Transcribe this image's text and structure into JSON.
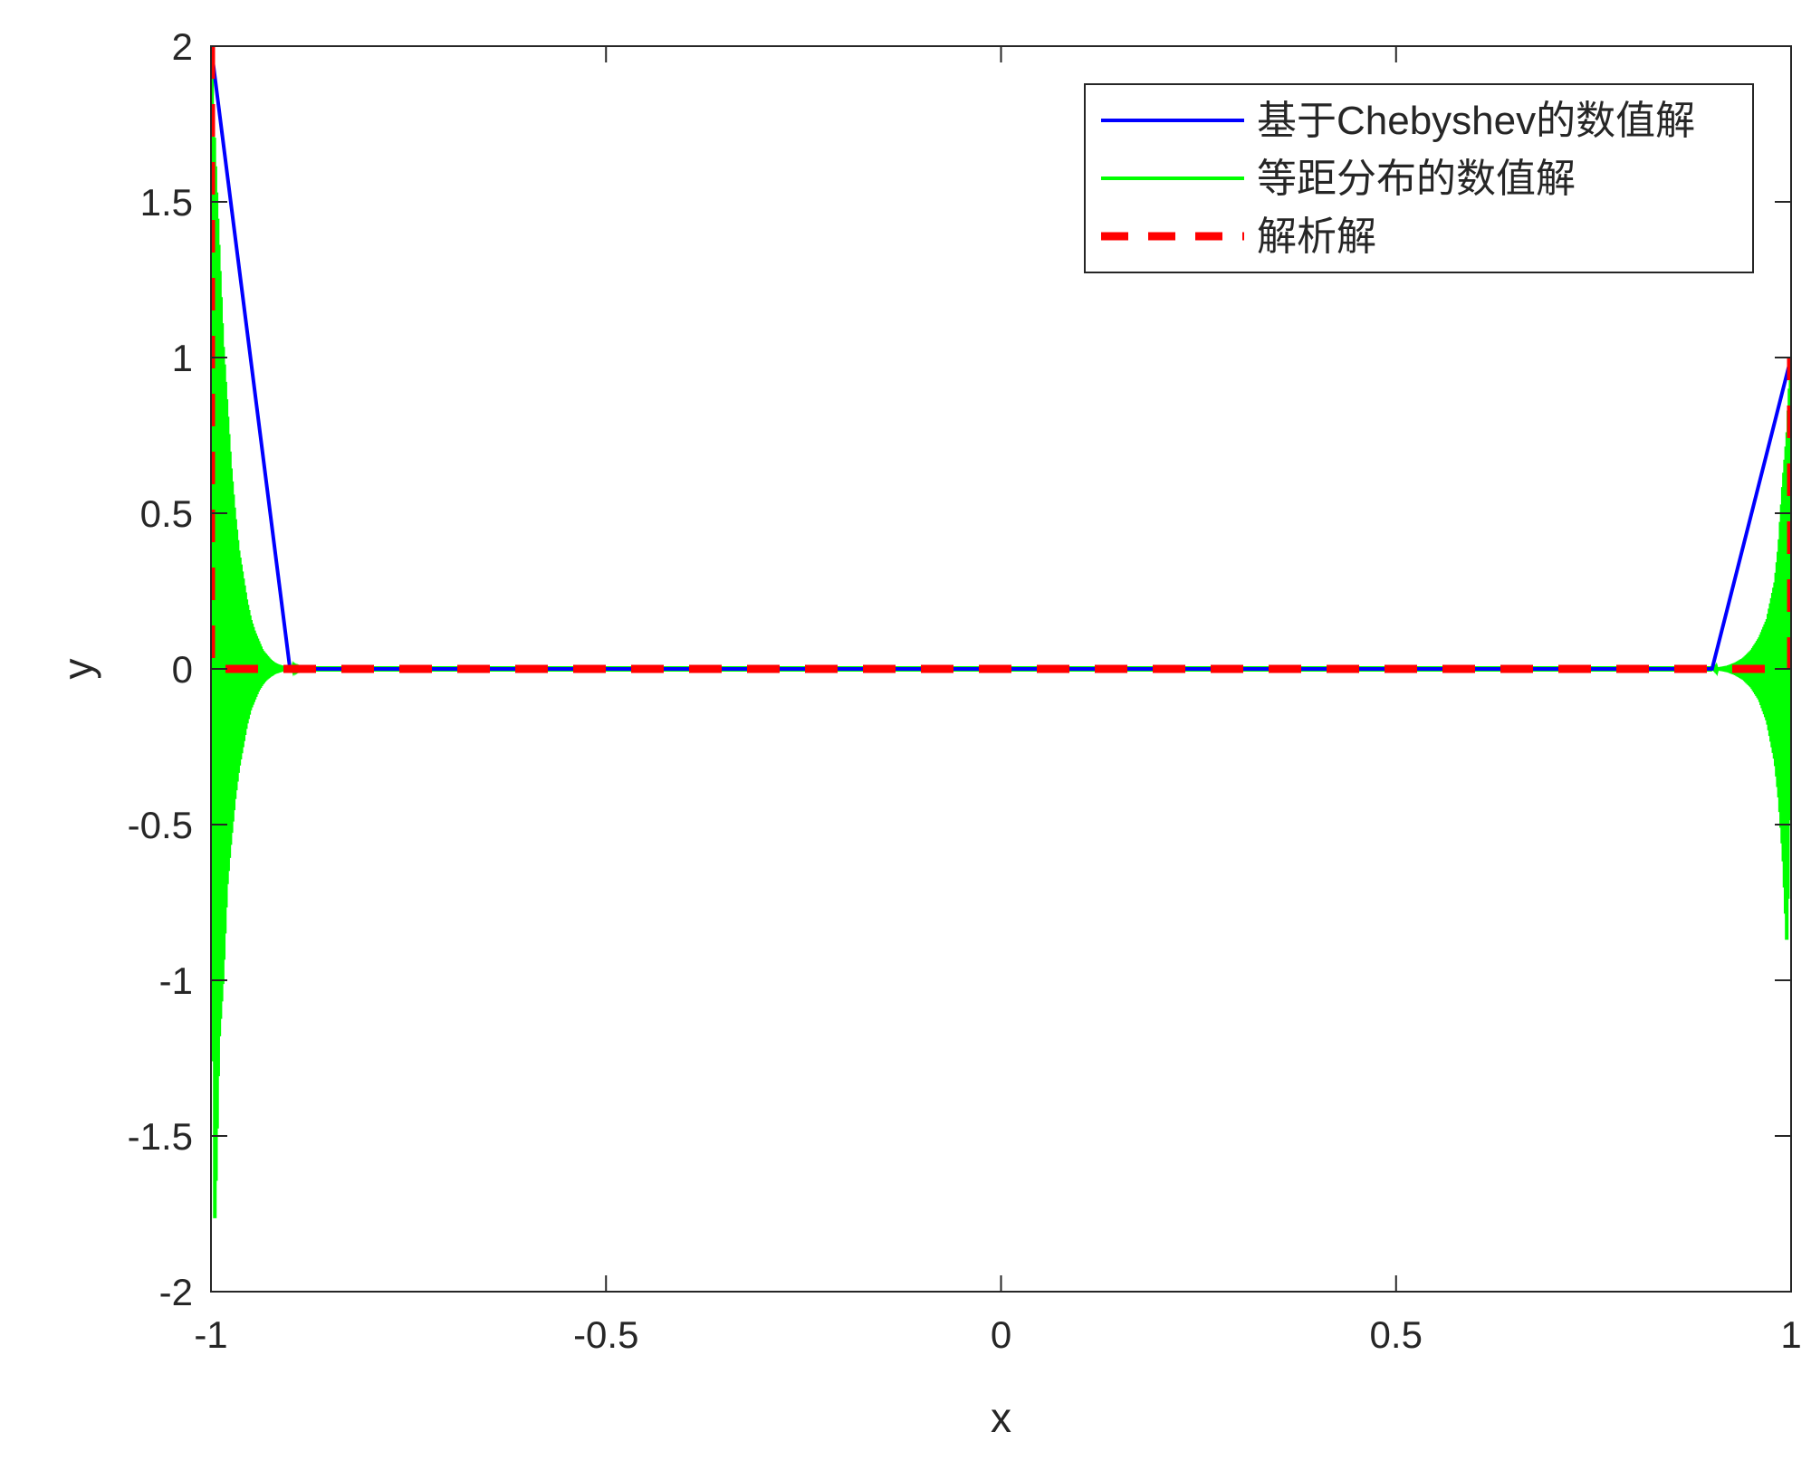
{
  "chart_data": {
    "type": "line",
    "title": "",
    "xlabel": "x",
    "ylabel": "y",
    "xlim": [
      -1,
      1
    ],
    "ylim": [
      -2,
      2
    ],
    "x_ticks": [
      "-1",
      "-0.5",
      "0",
      "0.5",
      "1"
    ],
    "x_tick_values": [
      -1,
      -0.5,
      0,
      0.5,
      1
    ],
    "y_ticks": [
      "-2",
      "-1.5",
      "-1",
      "-0.5",
      "0",
      "0.5",
      "1",
      "1.5",
      "2"
    ],
    "y_tick_values": [
      -2,
      -1.5,
      -1,
      -0.5,
      0,
      0.5,
      1,
      1.5,
      2
    ],
    "grid": false,
    "legend_position": "top-right",
    "series": [
      {
        "name": "基于Chebyshev的数值解",
        "color": "#0000ff",
        "style": "solid",
        "x": [
          -1,
          -0.9,
          0,
          0.9,
          1
        ],
        "y": [
          2,
          0,
          0,
          0,
          1
        ]
      },
      {
        "name": "等距分布的数值解",
        "color": "#00ff00",
        "style": "solid",
        "oscillating": true,
        "left_x": [
          -1,
          -0.995,
          -0.99,
          -0.985,
          -0.98,
          -0.975,
          -0.97,
          -0.965,
          -0.96,
          -0.955,
          -0.95,
          -0.945,
          -0.94,
          -0.935,
          -0.93,
          -0.925,
          -0.92,
          -0.915,
          -0.91,
          -0.905,
          -0.9,
          -0.895,
          -0.89,
          -0.885,
          -0.88
        ],
        "left_upper": [
          2.0,
          1.65,
          1.35,
          1.05,
          0.85,
          0.65,
          0.5,
          0.38,
          0.3,
          0.22,
          0.16,
          0.12,
          0.09,
          0.06,
          0.045,
          0.03,
          0.02,
          0.014,
          0.01,
          0.007,
          0.005,
          0.003,
          0.002,
          0.001,
          0
        ],
        "left_lower": [
          0,
          -1.8,
          -1.2,
          -1.0,
          -0.7,
          -0.55,
          -0.42,
          -0.32,
          -0.25,
          -0.18,
          -0.13,
          -0.1,
          -0.07,
          -0.05,
          -0.035,
          -0.025,
          -0.017,
          -0.012,
          -0.008,
          -0.006,
          -0.004,
          -0.003,
          -0.002,
          -0.001,
          0
        ],
        "right_x": [
          0.9,
          0.91,
          0.92,
          0.93,
          0.94,
          0.95,
          0.96,
          0.97,
          0.98,
          0.985,
          0.99,
          0.995,
          1
        ],
        "right_upper": [
          0,
          0.005,
          0.01,
          0.02,
          0.035,
          0.06,
          0.1,
          0.16,
          0.28,
          0.4,
          0.6,
          0.75,
          1.0
        ],
        "right_lower": [
          0,
          -0.005,
          -0.01,
          -0.02,
          -0.035,
          -0.06,
          -0.1,
          -0.17,
          -0.3,
          -0.42,
          -0.6,
          -0.9,
          0
        ]
      },
      {
        "name": "解析解",
        "color": "#ff0000",
        "style": "dashed",
        "x": [
          -1,
          -1,
          -1,
          1,
          1,
          1
        ],
        "y": [
          2,
          0,
          0,
          0,
          0,
          1
        ]
      }
    ]
  }
}
